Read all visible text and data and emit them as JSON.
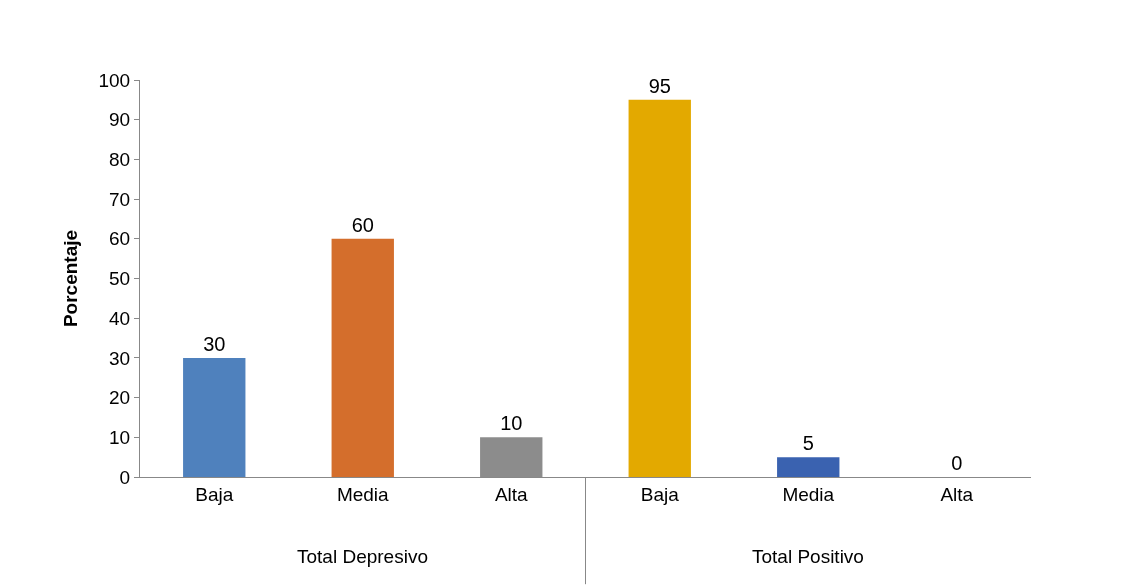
{
  "chart_data": {
    "type": "bar",
    "ylabel": "Porcentaje",
    "categories": [
      "Baja",
      "Media",
      "Alta",
      "Baja",
      "Media",
      "Alta"
    ],
    "values": [
      30,
      60,
      10,
      95,
      5,
      0
    ],
    "colors": [
      "#4f81bd",
      "#d46e2c",
      "#8c8c8c",
      "#e3a900",
      "#3a62b0",
      "#4b7f2f"
    ],
    "ylim": [
      0,
      100
    ],
    "yticks": [
      0,
      10,
      20,
      30,
      40,
      50,
      60,
      70,
      80,
      90,
      100
    ],
    "data_labels": true,
    "annotations": [
      "Total Depresivo",
      "Total Positivo"
    ]
  }
}
